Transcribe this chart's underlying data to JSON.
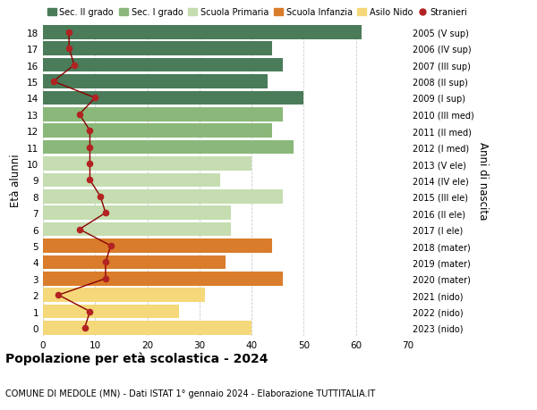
{
  "ages": [
    18,
    17,
    16,
    15,
    14,
    13,
    12,
    11,
    10,
    9,
    8,
    7,
    6,
    5,
    4,
    3,
    2,
    1,
    0
  ],
  "bar_values": [
    61,
    44,
    46,
    43,
    50,
    46,
    44,
    48,
    40,
    34,
    46,
    36,
    36,
    44,
    35,
    46,
    31,
    26,
    40
  ],
  "bar_colors": [
    "#4a7c59",
    "#4a7c59",
    "#4a7c59",
    "#4a7c59",
    "#4a7c59",
    "#8ab87a",
    "#8ab87a",
    "#8ab87a",
    "#c5ddb0",
    "#c5ddb0",
    "#c5ddb0",
    "#c5ddb0",
    "#c5ddb0",
    "#d97c2b",
    "#d97c2b",
    "#d97c2b",
    "#f5d87a",
    "#f5d87a",
    "#f5d87a"
  ],
  "stranieri_values": [
    5,
    5,
    6,
    2,
    10,
    7,
    9,
    9,
    9,
    9,
    11,
    12,
    7,
    13,
    12,
    12,
    3,
    9,
    8
  ],
  "right_labels": [
    "2005 (V sup)",
    "2006 (IV sup)",
    "2007 (III sup)",
    "2008 (II sup)",
    "2009 (I sup)",
    "2010 (III med)",
    "2011 (II med)",
    "2012 (I med)",
    "2013 (V ele)",
    "2014 (IV ele)",
    "2015 (III ele)",
    "2016 (II ele)",
    "2017 (I ele)",
    "2018 (mater)",
    "2019 (mater)",
    "2020 (mater)",
    "2021 (nido)",
    "2022 (nido)",
    "2023 (nido)"
  ],
  "legend_labels": [
    "Sec. II grado",
    "Sec. I grado",
    "Scuola Primaria",
    "Scuola Infanzia",
    "Asilo Nido",
    "Stranieri"
  ],
  "legend_colors": [
    "#4a7c59",
    "#8ab87a",
    "#c5ddb0",
    "#d97c2b",
    "#f5d87a",
    "#b22222"
  ],
  "ylabel": "Età alunni",
  "ylabel2": "Anni di nascita",
  "title": "Popolazione per età scolastica - 2024",
  "subtitle": "COMUNE DI MEDOLE (MN) - Dati ISTAT 1° gennaio 2024 - Elaborazione TUTTITALIA.IT",
  "xlim": [
    0,
    70
  ],
  "xticks": [
    0,
    10,
    20,
    30,
    40,
    50,
    60,
    70
  ],
  "stranieri_line_color": "#8b0000",
  "stranieri_dot_color": "#b22222",
  "background_color": "#ffffff",
  "grid_color": "#cccccc"
}
